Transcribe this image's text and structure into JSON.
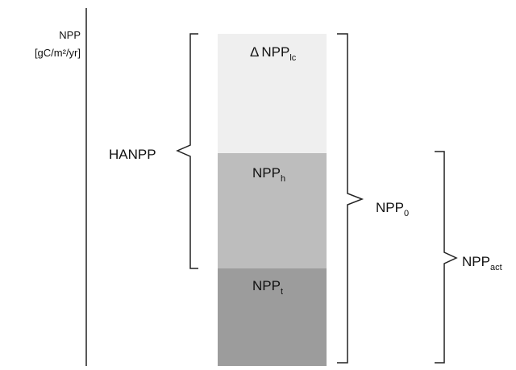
{
  "axis": {
    "label": "NPP",
    "unit": "[gC/m²/yr]"
  },
  "segments": [
    {
      "prefix": "Δ",
      "base": "NPP",
      "sub": "lc"
    },
    {
      "base": "NPP",
      "sub": "h"
    },
    {
      "base": "NPP",
      "sub": "t"
    }
  ],
  "braces": [
    {
      "base": "HANPP"
    },
    {
      "base": "NPP",
      "sub": "0"
    },
    {
      "base": "NPP",
      "sub": "act"
    }
  ]
}
